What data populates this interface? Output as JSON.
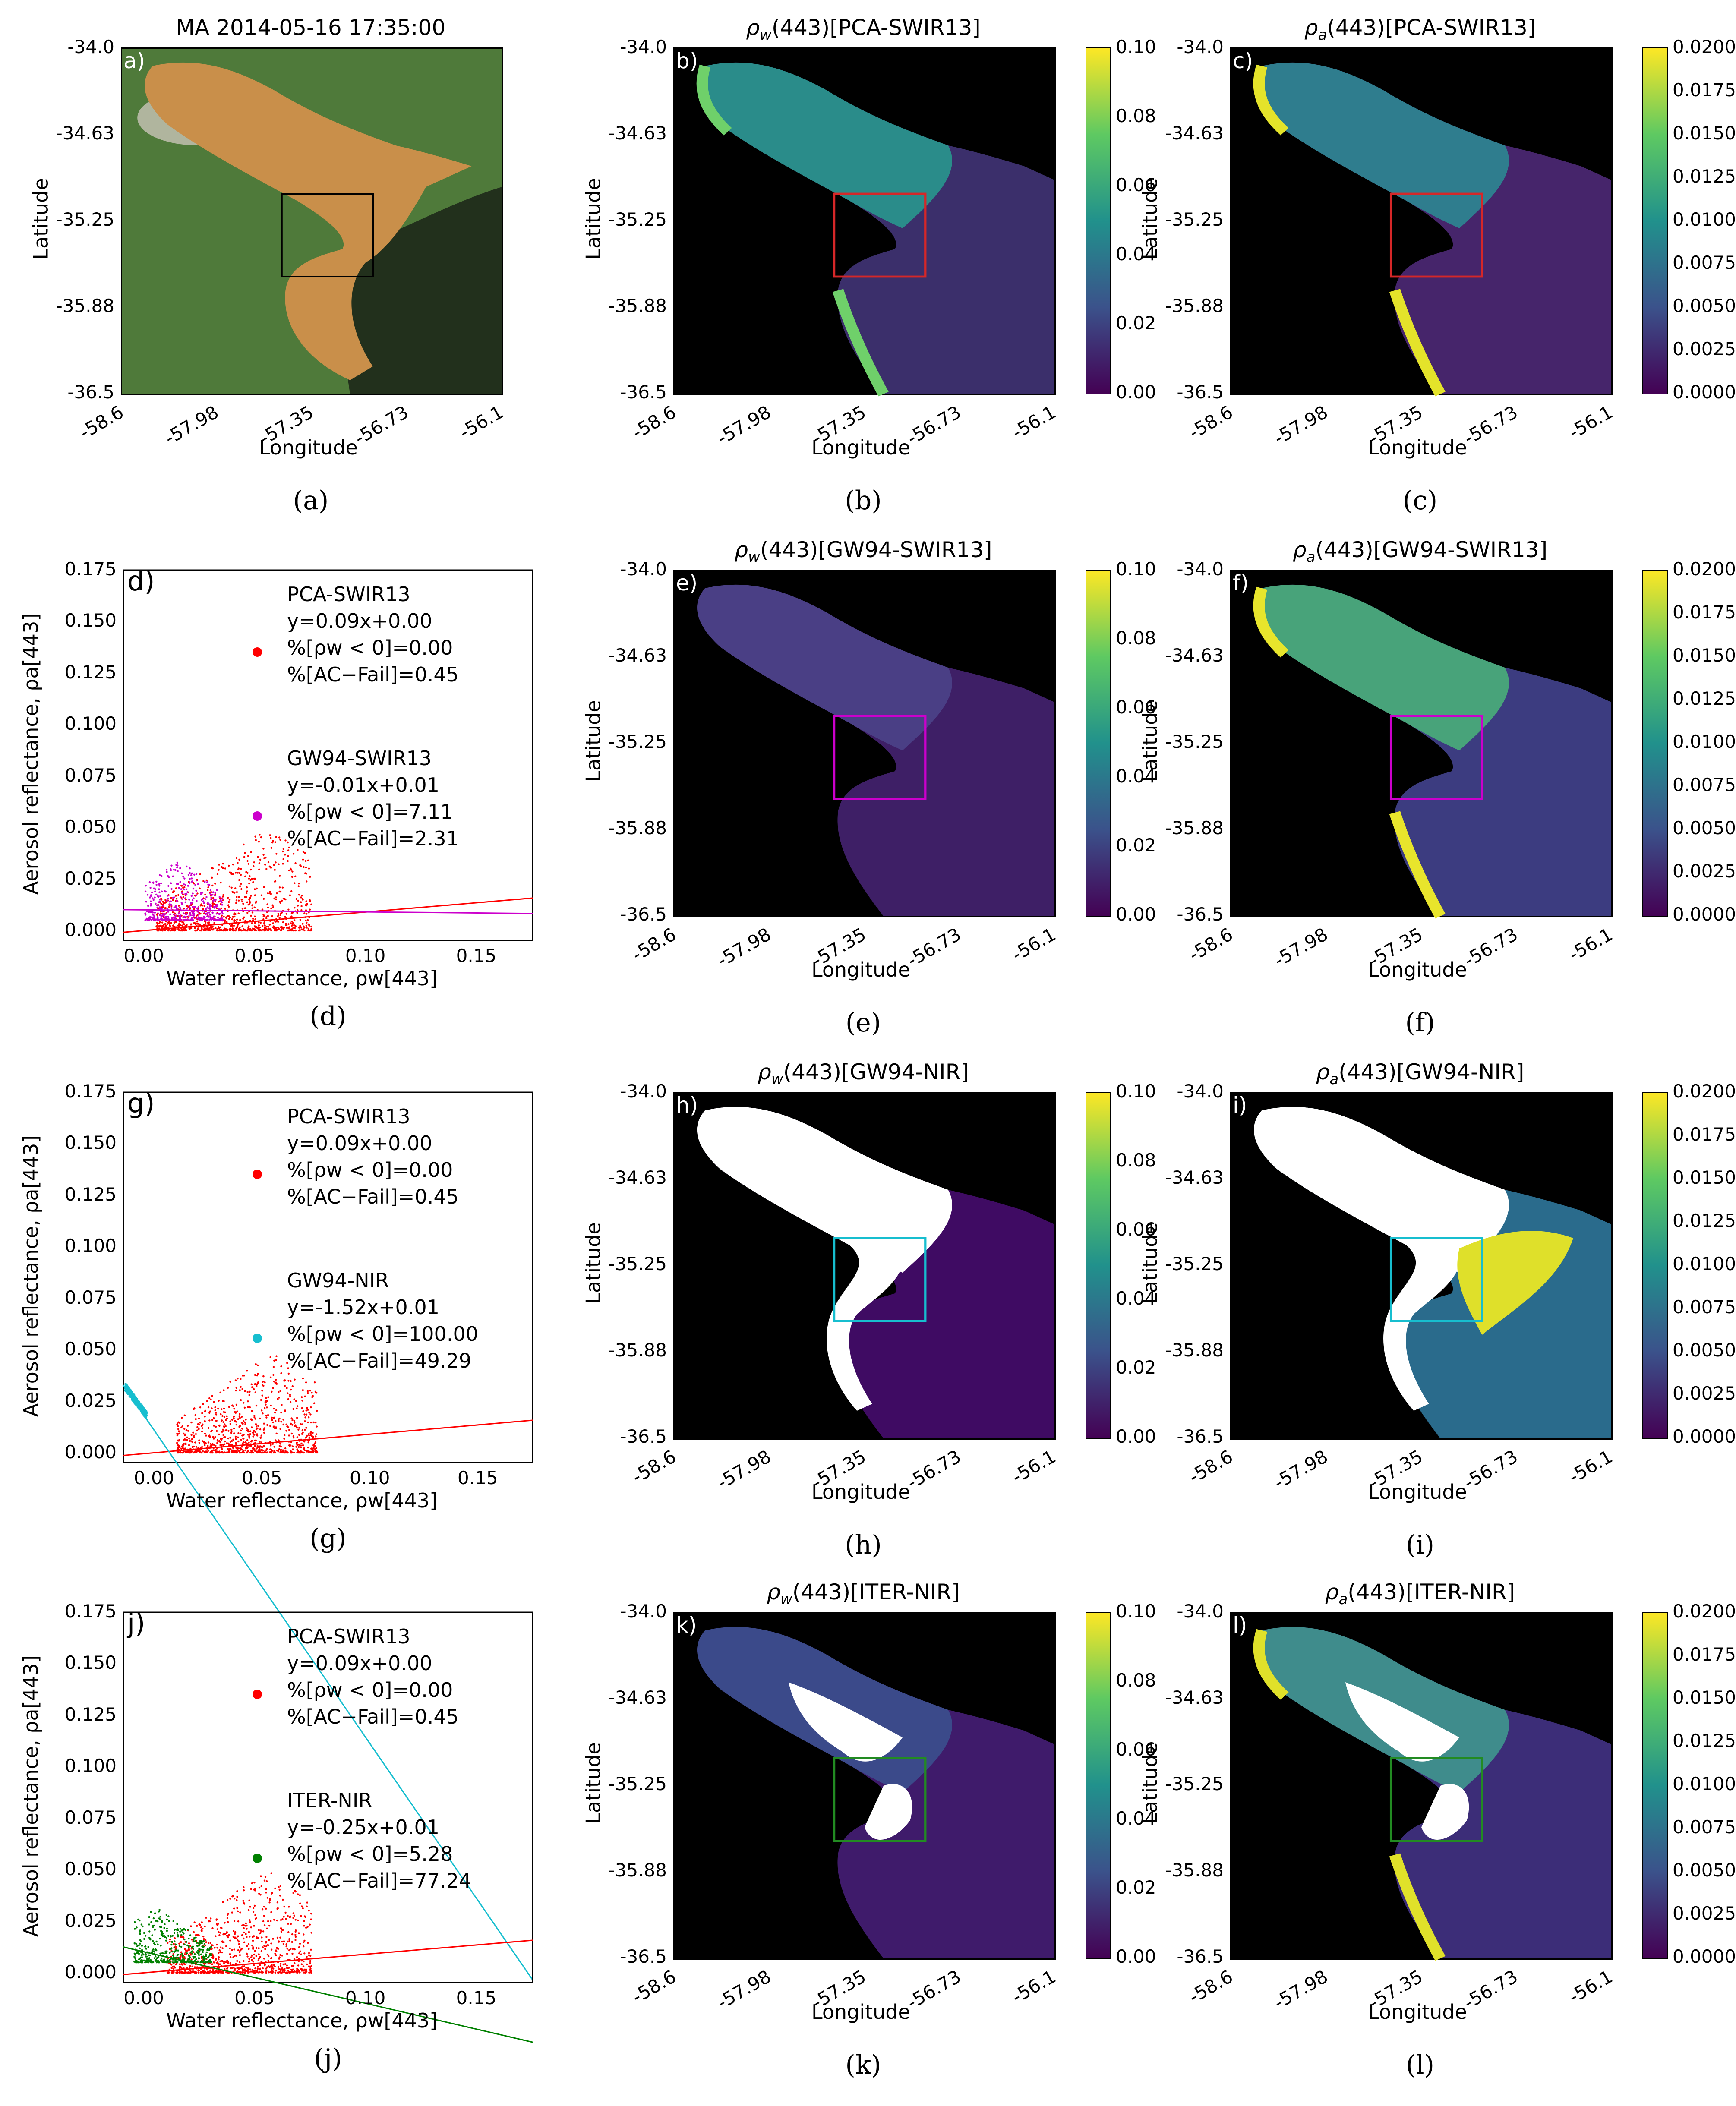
{
  "colors": {
    "pca": "#ff0000",
    "gw94_swir": "#cc00cc",
    "gw94_nir": "#17becf",
    "iter_nir": "#008000",
    "map_box_pca": "#d62728",
    "map_box_gw94_swir": "#cc00cc",
    "map_box_gw94_nir": "#17becf",
    "map_box_iter": "#228b22"
  },
  "map_axes": {
    "yticks": [
      "-34.0",
      "-34.63",
      "-35.25",
      "-35.88",
      "-36.5"
    ],
    "xticks": [
      "-58.6",
      "-57.98",
      "-57.35",
      "-56.73",
      "-56.1"
    ],
    "xlabel": "Longitude",
    "ylabel": "Latitude"
  },
  "colorbars": {
    "rho_w": [
      "0.10",
      "0.08",
      "0.06",
      "0.04",
      "0.02",
      "0.00"
    ],
    "rho_a": [
      "0.0200",
      "0.0175",
      "0.0150",
      "0.0125",
      "0.0100",
      "0.0075",
      "0.0050",
      "0.0025",
      "0.0000"
    ]
  },
  "panels": {
    "a": {
      "title": "MA 2014-05-16 17:35:00",
      "label": "a)",
      "caption": "(a)"
    },
    "b": {
      "title_main": "ρ",
      "title_sub": "w",
      "title_rest": "(443)[PCA-SWIR13]",
      "label": "b)",
      "caption": "(b)"
    },
    "c": {
      "title_main": "ρ",
      "title_sub": "a",
      "title_rest": "(443)[PCA-SWIR13]",
      "label": "c)",
      "caption": "(c)"
    },
    "e": {
      "title_main": "ρ",
      "title_sub": "w",
      "title_rest": "(443)[GW94-SWIR13]",
      "label": "e)",
      "caption": "(e)"
    },
    "f": {
      "title_main": "ρ",
      "title_sub": "a",
      "title_rest": "(443)[GW94-SWIR13]",
      "label": "f)",
      "caption": "(f)"
    },
    "h": {
      "title_main": "ρ",
      "title_sub": "w",
      "title_rest": "(443)[GW94-NIR]",
      "label": "h)",
      "caption": "(h)"
    },
    "i": {
      "title_main": "ρ",
      "title_sub": "a",
      "title_rest": "(443)[GW94-NIR]",
      "label": "i)",
      "caption": "(i)"
    },
    "k": {
      "title_main": "ρ",
      "title_sub": "w",
      "title_rest": "(443)[ITER-NIR]",
      "label": "k)",
      "caption": "(k)"
    },
    "l": {
      "title_main": "ρ",
      "title_sub": "a",
      "title_rest": "(443)[ITER-NIR]",
      "label": "l)",
      "caption": "(l)"
    },
    "d": {
      "label": "d)",
      "caption": "(d)"
    },
    "g": {
      "label": "g)",
      "caption": "(g)"
    },
    "j": {
      "label": "j)",
      "caption": "(j)"
    }
  },
  "chart_data": [
    {
      "id": "d",
      "type": "scatter",
      "xlabel": "Water reflectance, ρw[443]",
      "ylabel": "Aerosol reflectance, ρa[443]",
      "xlim": [
        -0.01,
        0.175
      ],
      "ylim": [
        -0.005,
        0.175
      ],
      "xticks": [
        "0.00",
        "0.05",
        "0.10",
        "0.15"
      ],
      "yticks": [
        "0.000",
        "0.025",
        "0.050",
        "0.075",
        "0.100",
        "0.125",
        "0.150",
        "0.175"
      ],
      "series": [
        {
          "name": "PCA-SWIR13",
          "color": "#ff0000",
          "fit": {
            "slope": 0.09,
            "intercept": 0.0
          },
          "legend": [
            "PCA-SWIR13",
            "y=0.09x+0.00",
            "%[ρw < 0]=0.00",
            "%[AC−Fail]=0.45"
          ],
          "cloud": {
            "xmin": 0.005,
            "xmax": 0.075,
            "ymin": 0.0,
            "ymax": 0.05,
            "peak_x": 0.055
          }
        },
        {
          "name": "GW94-SWIR13",
          "color": "#cc00cc",
          "fit": {
            "slope": -0.01,
            "intercept": 0.01
          },
          "legend": [
            "GW94-SWIR13",
            "y=-0.01x+0.01",
            "%[ρw < 0]=7.11",
            "%[AC−Fail]=2.31"
          ],
          "cloud": {
            "xmin": 0.0,
            "xmax": 0.035,
            "ymin": 0.005,
            "ymax": 0.035,
            "peak_x": 0.015
          }
        }
      ]
    },
    {
      "id": "g",
      "type": "scatter",
      "xlabel": "Water reflectance, ρw[443]",
      "ylabel": "Aerosol reflectance, ρa[443]",
      "xlim": [
        -0.015,
        0.175
      ],
      "ylim": [
        -0.005,
        0.175
      ],
      "xticks": [
        "0.00",
        "0.05",
        "0.10",
        "0.15"
      ],
      "yticks": [
        "0.000",
        "0.025",
        "0.050",
        "0.075",
        "0.100",
        "0.125",
        "0.150",
        "0.175"
      ],
      "series": [
        {
          "name": "PCA-SWIR13",
          "color": "#ff0000",
          "fit": {
            "slope": 0.09,
            "intercept": 0.0
          },
          "legend": [
            "PCA-SWIR13",
            "y=0.09x+0.00",
            "%[ρw < 0]=0.00",
            "%[AC−Fail]=0.45"
          ],
          "cloud": {
            "xmin": 0.01,
            "xmax": 0.075,
            "ymin": 0.0,
            "ymax": 0.05,
            "peak_x": 0.055
          }
        },
        {
          "name": "GW94-NIR",
          "color": "#17becf",
          "fit": {
            "slope": -1.52,
            "intercept": 0.01
          },
          "legend": [
            "GW94-NIR",
            "y=-1.52x+0.01",
            "%[ρw < 0]=100.00",
            "%[AC−Fail]=49.29"
          ],
          "cloud": {
            "xmin": -0.014,
            "xmax": -0.004,
            "ymin": 0.018,
            "ymax": 0.032,
            "peak_x": -0.01
          }
        }
      ]
    },
    {
      "id": "j",
      "type": "scatter",
      "xlabel": "Water reflectance, ρw[443]",
      "ylabel": "Aerosol reflectance, ρa[443]",
      "xlim": [
        -0.01,
        0.175
      ],
      "ylim": [
        -0.005,
        0.175
      ],
      "xticks": [
        "0.00",
        "0.05",
        "0.10",
        "0.15"
      ],
      "yticks": [
        "0.000",
        "0.025",
        "0.050",
        "0.075",
        "0.100",
        "0.125",
        "0.150",
        "0.175"
      ],
      "series": [
        {
          "name": "PCA-SWIR13",
          "color": "#ff0000",
          "fit": {
            "slope": 0.09,
            "intercept": 0.0
          },
          "legend": [
            "PCA-SWIR13",
            "y=0.09x+0.00",
            "%[ρw < 0]=0.00",
            "%[AC−Fail]=0.45"
          ],
          "cloud": {
            "xmin": 0.01,
            "xmax": 0.075,
            "ymin": 0.0,
            "ymax": 0.05,
            "peak_x": 0.055
          }
        },
        {
          "name": "ITER-NIR",
          "color": "#008000",
          "fit": {
            "slope": -0.25,
            "intercept": 0.01
          },
          "legend": [
            "ITER-NIR",
            "y=-0.25x+0.01",
            "%[ρw < 0]=5.28",
            "%[AC−Fail]=77.24"
          ],
          "cloud": {
            "xmin": -0.005,
            "xmax": 0.03,
            "ymin": 0.005,
            "ymax": 0.033,
            "peak_x": 0.005
          }
        }
      ]
    }
  ]
}
